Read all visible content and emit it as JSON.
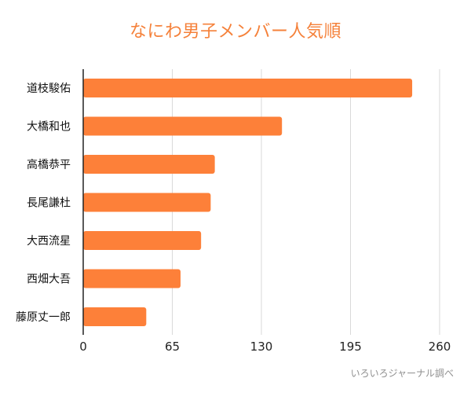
{
  "title": "なにわ男子メンバー人気順",
  "source": "いろいろジャーナル調べ",
  "colors": {
    "title": "#f5813a",
    "bar": "#fd8039",
    "grid": "#d9d9d9",
    "axis": "#222222"
  },
  "chart_data": {
    "type": "bar",
    "orientation": "horizontal",
    "title": "なにわ男子メンバー人気順",
    "xlabel": "",
    "ylabel": "",
    "categories": [
      "道枝駿佑",
      "大橋和也",
      "高橋恭平",
      "長尾謙杜",
      "大西流星",
      "西畑大吾",
      "藤原丈一郎"
    ],
    "values": [
      240,
      145,
      96,
      93,
      86,
      71,
      46
    ],
    "xlim": [
      0,
      260
    ],
    "xticks": [
      0,
      65,
      130,
      195,
      260
    ],
    "grid": true
  }
}
